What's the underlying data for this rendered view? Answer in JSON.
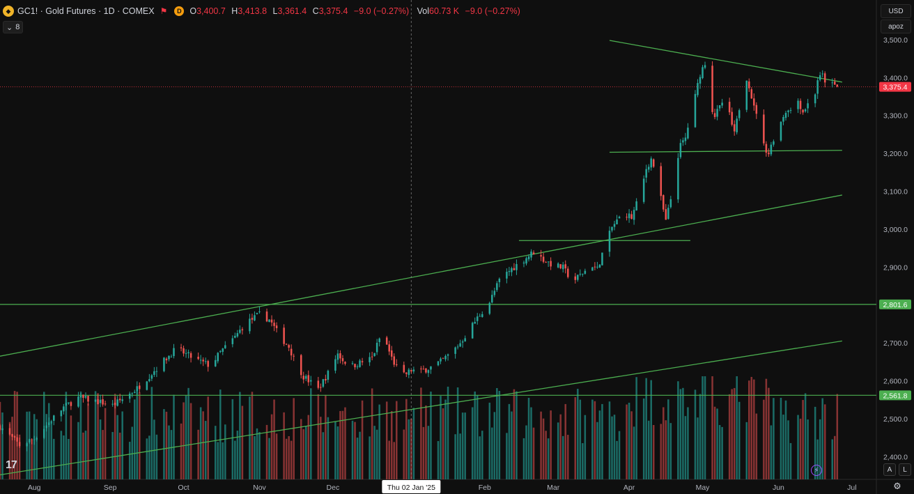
{
  "header": {
    "symbol_title": "GC1! · Gold Futures · 1D · COMEX",
    "o_label": "O",
    "o_value": "3,400.7",
    "h_label": "H",
    "h_value": "3,413.8",
    "l_label": "L",
    "l_value": "3,361.4",
    "c_label": "C",
    "c_value": "3,375.4",
    "change": "−9.0 (−0.27%)",
    "vol_label": "Vol",
    "vol_value": "60.73 K",
    "vol_change": "−9.0 (−0.27%)",
    "d_badge": "D",
    "indicator_toggle": "8"
  },
  "controls": {
    "currency": "USD",
    "scale_mode": "apoz",
    "auto_button": "A",
    "log_button": "L"
  },
  "colors": {
    "up": "#26a69a",
    "down": "#ef5350",
    "up_volume": "#1d7d75",
    "down_volume": "#9c3a3a",
    "trendline": "#4caf50",
    "price_badge": "#f23645",
    "level_badge": "#4caf50"
  },
  "chart_data": {
    "type": "candlestick",
    "y_axis": {
      "ylim": [
        2340,
        3520
      ],
      "ticks": [
        "3,500.0",
        "3,400.0",
        "3,300.0",
        "3,200.0",
        "3,100.0",
        "3,000.0",
        "2,900.0",
        "2,800.0",
        "2,700.0",
        "2,600.0",
        "2,500.0",
        "2,400.0"
      ],
      "tick_values": [
        3500,
        3400,
        3300,
        3200,
        3100,
        3000,
        2900,
        2800,
        2700,
        2600,
        2500,
        2400
      ]
    },
    "x_axis": {
      "labels": [
        "Aug",
        "Sep",
        "Oct",
        "Nov",
        "Dec",
        "Feb",
        "Mar",
        "Apr",
        "May",
        "Jun",
        "Jul"
      ],
      "label_days": [
        0,
        31,
        61,
        92,
        122,
        184,
        212,
        243,
        273,
        304,
        334
      ],
      "crosshair_label": "Thu 02 Jan '25",
      "crosshair_day": 154,
      "xlim": [
        -14,
        344
      ]
    },
    "last_price": {
      "label": "3,375.4",
      "value": 3375.4
    },
    "horizontal_levels": [
      {
        "label": "2,801.6",
        "value": 2801.6
      },
      {
        "label": "2,561.8",
        "value": 2561.8
      }
    ],
    "trendlines": [
      {
        "from": {
          "day": -14,
          "price": 2665
        },
        "to": {
          "day": 330,
          "price": 3090
        }
      },
      {
        "from": {
          "day": -14,
          "price": 2352
        },
        "to": {
          "day": 330,
          "price": 2705
        }
      },
      {
        "from": {
          "day": 235,
          "price": 3498
        },
        "to": {
          "day": 330,
          "price": 3388
        }
      },
      {
        "from": {
          "day": 235,
          "price": 3203
        },
        "to": {
          "day": 330,
          "price": 3208
        }
      },
      {
        "from": {
          "day": 198,
          "price": 2970
        },
        "to": {
          "day": 268,
          "price": 2970
        }
      }
    ],
    "price_anchors": [
      [
        -14,
        2480
      ],
      [
        -6,
        2430
      ],
      [
        0,
        2448
      ],
      [
        6,
        2490
      ],
      [
        12,
        2530
      ],
      [
        18,
        2555
      ],
      [
        24,
        2548
      ],
      [
        28,
        2542
      ],
      [
        32,
        2535
      ],
      [
        36,
        2552
      ],
      [
        42,
        2580
      ],
      [
        48,
        2620
      ],
      [
        54,
        2660
      ],
      [
        58,
        2685
      ],
      [
        62,
        2670
      ],
      [
        68,
        2650
      ],
      [
        72,
        2640
      ],
      [
        76,
        2675
      ],
      [
        82,
        2715
      ],
      [
        86,
        2750
      ],
      [
        92,
        2775
      ],
      [
        96,
        2762
      ],
      [
        100,
        2720
      ],
      [
        104,
        2690
      ],
      [
        106,
        2660
      ],
      [
        110,
        2612
      ],
      [
        116,
        2578
      ],
      [
        120,
        2620
      ],
      [
        124,
        2672
      ],
      [
        126,
        2655
      ],
      [
        130,
        2640
      ],
      [
        134,
        2650
      ],
      [
        138,
        2660
      ],
      [
        142,
        2728
      ],
      [
        146,
        2660
      ],
      [
        150,
        2610
      ],
      [
        154,
        2628
      ],
      [
        158,
        2625
      ],
      [
        162,
        2636
      ],
      [
        166,
        2650
      ],
      [
        170,
        2672
      ],
      [
        174,
        2700
      ],
      [
        178,
        2738
      ],
      [
        182,
        2775
      ],
      [
        186,
        2808
      ],
      [
        190,
        2865
      ],
      [
        194,
        2890
      ],
      [
        198,
        2910
      ],
      [
        204,
        2940
      ],
      [
        208,
        2920
      ],
      [
        212,
        2905
      ],
      [
        216,
        2898
      ],
      [
        220,
        2862
      ],
      [
        224,
        2885
      ],
      [
        228,
        2905
      ],
      [
        230,
        2895
      ],
      [
        232,
        2935
      ],
      [
        236,
        3005
      ],
      [
        240,
        3038
      ],
      [
        242,
        3040
      ],
      [
        244,
        3030
      ],
      [
        248,
        3102
      ],
      [
        250,
        3160
      ],
      [
        252,
        3185
      ],
      [
        254,
        3150
      ],
      [
        256,
        3080
      ],
      [
        258,
        3020
      ],
      [
        260,
        3080
      ],
      [
        262,
        3170
      ],
      [
        264,
        3220
      ],
      [
        266,
        3240
      ],
      [
        268,
        3300
      ],
      [
        270,
        3350
      ],
      [
        272,
        3410
      ],
      [
        274,
        3440
      ],
      [
        276,
        3330
      ],
      [
        278,
        3300
      ],
      [
        280,
        3320
      ],
      [
        282,
        3348
      ],
      [
        284,
        3300
      ],
      [
        286,
        3250
      ],
      [
        288,
        3320
      ],
      [
        290,
        3420
      ],
      [
        292,
        3380
      ],
      [
        294,
        3320
      ],
      [
        296,
        3300
      ],
      [
        298,
        3220
      ],
      [
        300,
        3200
      ],
      [
        302,
        3240
      ],
      [
        304,
        3265
      ],
      [
        306,
        3300
      ],
      [
        308,
        3320
      ],
      [
        310,
        3305
      ],
      [
        312,
        3340
      ],
      [
        314,
        3310
      ],
      [
        316,
        3330
      ],
      [
        318,
        3325
      ],
      [
        320,
        3395
      ],
      [
        322,
        3405
      ],
      [
        324,
        3380
      ],
      [
        326,
        3380
      ],
      [
        328,
        3375
      ]
    ]
  }
}
